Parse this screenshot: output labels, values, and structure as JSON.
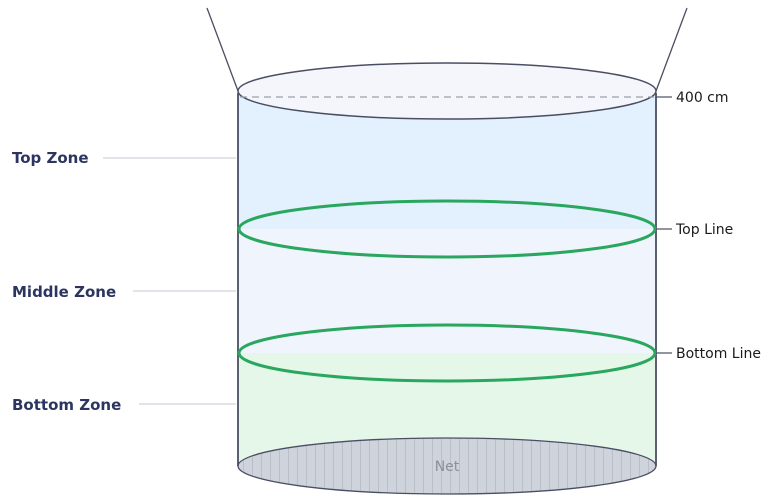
{
  "zones": {
    "top": "Top Zone",
    "middle": "Middle Zone",
    "bottom": "Bottom Zone"
  },
  "markers": {
    "height": "400 cm",
    "top_line": "Top Line",
    "bottom_line": "Bottom Line"
  },
  "net_label": "Net",
  "colors": {
    "top_zone_fill": "#e3f0fd",
    "middle_zone_fill": "#f0f4fc",
    "bottom_zone_fill": "#e4f7e9",
    "ring_stroke": "#2aa75e",
    "outline": "#4a4e63",
    "net_fill": "#cfd3dc",
    "zone_label_color": "#2b3560"
  }
}
